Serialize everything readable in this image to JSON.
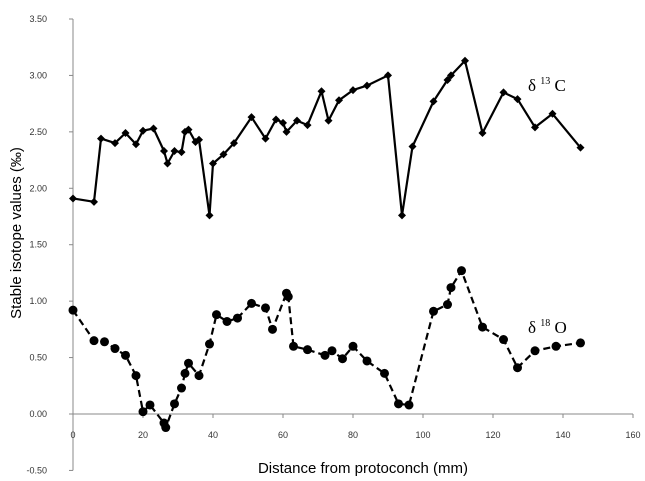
{
  "chart_data": {
    "type": "line",
    "title": "",
    "xlabel": "Distance from protoconch (mm)",
    "ylabel": "Stable isotope values (‰)",
    "xlim": [
      0,
      160
    ],
    "ylim": [
      -0.5,
      3.5
    ],
    "x_ticks": [
      "0",
      "20",
      "40",
      "60",
      "80",
      "100",
      "120",
      "140",
      "160"
    ],
    "y_ticks": [
      "-0.50",
      "0.00",
      "0.50",
      "1.00",
      "1.50",
      "2.00",
      "2.50",
      "3.00",
      "3.50"
    ],
    "grid": false,
    "series": [
      {
        "name": "δ13C",
        "label_text": "δ",
        "label_sup": "13",
        "label_sub_letter": "C",
        "line_style": "solid",
        "marker": "diamond",
        "color": "#000000",
        "x": [
          0,
          6,
          8,
          12,
          15,
          18,
          20,
          23,
          26,
          27,
          29,
          31,
          32,
          33,
          35,
          36,
          39,
          40,
          43,
          46,
          51,
          55,
          58,
          60,
          61,
          64,
          67,
          71,
          73,
          76,
          80,
          84,
          90,
          94,
          97,
          103,
          107,
          108,
          112,
          117,
          123,
          127,
          132,
          137,
          145
        ],
        "y": [
          1.91,
          1.88,
          2.44,
          2.4,
          2.49,
          2.39,
          2.51,
          2.53,
          2.33,
          2.22,
          2.33,
          2.32,
          2.5,
          2.52,
          2.41,
          2.43,
          1.76,
          2.22,
          2.3,
          2.4,
          2.63,
          2.44,
          2.61,
          2.58,
          2.5,
          2.6,
          2.56,
          2.86,
          2.6,
          2.78,
          2.87,
          2.91,
          3.0,
          1.76,
          2.37,
          2.77,
          2.96,
          3.0,
          3.13,
          2.49,
          2.85,
          2.79,
          2.54,
          2.66,
          2.36
        ]
      },
      {
        "name": "δ18O",
        "label_text": "δ",
        "label_sup": "18",
        "label_sub_letter": "O",
        "line_style": "dashed",
        "marker": "circle",
        "color": "#000000",
        "x": [
          0,
          6,
          9,
          12,
          15,
          18,
          20,
          22,
          26,
          26.5,
          29,
          31,
          32,
          33,
          36,
          39,
          41,
          44,
          47,
          51,
          55,
          57,
          61,
          61.5,
          63,
          67,
          72,
          74,
          77,
          80,
          84,
          89,
          93,
          96,
          103,
          107,
          108,
          111,
          117,
          123,
          127,
          132,
          138,
          145
        ],
        "y": [
          0.92,
          0.65,
          0.64,
          0.58,
          0.52,
          0.34,
          0.02,
          0.08,
          -0.08,
          -0.12,
          0.09,
          0.23,
          0.36,
          0.45,
          0.34,
          0.62,
          0.88,
          0.82,
          0.85,
          0.98,
          0.94,
          0.75,
          1.07,
          1.04,
          0.6,
          0.57,
          0.52,
          0.56,
          0.49,
          0.6,
          0.47,
          0.36,
          0.09,
          0.08,
          0.91,
          0.97,
          1.12,
          1.27,
          0.77,
          0.66,
          0.41,
          0.56,
          0.6,
          0.63
        ]
      }
    ]
  }
}
